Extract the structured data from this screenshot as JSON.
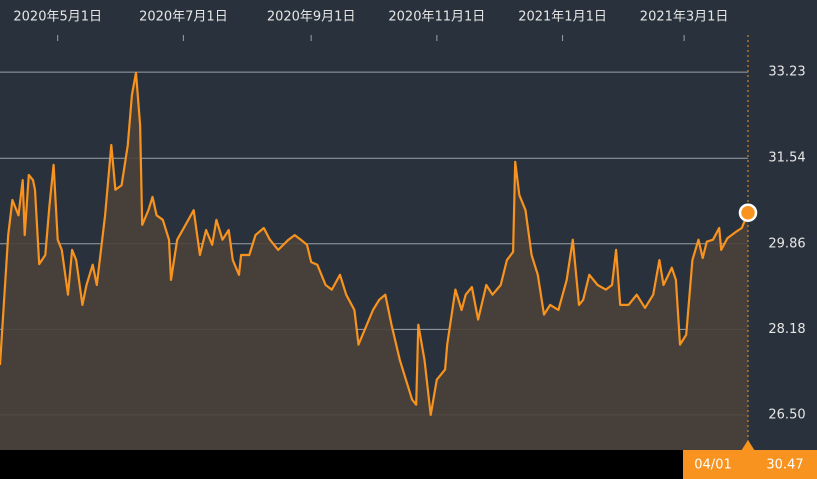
{
  "chart_data": {
    "type": "line",
    "x": [
      "2020-04-03",
      "2020-04-07",
      "2020-04-09",
      "2020-04-12",
      "2020-04-14",
      "2020-04-15",
      "2020-04-17",
      "2020-04-19",
      "2020-04-20",
      "2020-04-22",
      "2020-04-25",
      "2020-04-27",
      "2020-04-29",
      "2020-05-01",
      "2020-05-03",
      "2020-05-06",
      "2020-05-08",
      "2020-05-10",
      "2020-05-13",
      "2020-05-15",
      "2020-05-18",
      "2020-05-20",
      "2020-05-22",
      "2020-05-24",
      "2020-05-27",
      "2020-05-29",
      "2020-06-01",
      "2020-06-04",
      "2020-06-06",
      "2020-06-08",
      "2020-06-10",
      "2020-06-11",
      "2020-06-14",
      "2020-06-16",
      "2020-06-18",
      "2020-06-21",
      "2020-06-24",
      "2020-06-25",
      "2020-06-28",
      "2020-07-02",
      "2020-07-06",
      "2020-07-09",
      "2020-07-12",
      "2020-07-15",
      "2020-07-17",
      "2020-07-20",
      "2020-07-23",
      "2020-07-25",
      "2020-07-28",
      "2020-07-29",
      "2020-08-02",
      "2020-08-05",
      "2020-08-09",
      "2020-08-12",
      "2020-08-16",
      "2020-08-21",
      "2020-08-24",
      "2020-08-27",
      "2020-08-30",
      "2020-09-01",
      "2020-09-04",
      "2020-09-08",
      "2020-09-11",
      "2020-09-15",
      "2020-09-18",
      "2020-09-22",
      "2020-09-24",
      "2020-09-27",
      "2020-10-01",
      "2020-10-04",
      "2020-10-07",
      "2020-10-10",
      "2020-10-14",
      "2020-10-17",
      "2020-10-20",
      "2020-10-22",
      "2020-10-23",
      "2020-10-26",
      "2020-10-29",
      "2020-11-01",
      "2020-11-05",
      "2020-11-06",
      "2020-11-10",
      "2020-11-13",
      "2020-11-15",
      "2020-11-18",
      "2020-11-21",
      "2020-11-25",
      "2020-11-28",
      "2020-12-02",
      "2020-12-05",
      "2020-12-08",
      "2020-12-09",
      "2020-12-11",
      "2020-12-14",
      "2020-12-17",
      "2020-12-20",
      "2020-12-23",
      "2020-12-26",
      "2020-12-30",
      "2021-01-03",
      "2021-01-06",
      "2021-01-09",
      "2021-01-11",
      "2021-01-14",
      "2021-01-18",
      "2021-01-22",
      "2021-01-25",
      "2021-01-27",
      "2021-01-29",
      "2021-02-02",
      "2021-02-06",
      "2021-02-10",
      "2021-02-14",
      "2021-02-17",
      "2021-02-19",
      "2021-02-23",
      "2021-02-25",
      "2021-02-27",
      "2021-03-02",
      "2021-03-05",
      "2021-03-08",
      "2021-03-10",
      "2021-03-12",
      "2021-03-15",
      "2021-03-18",
      "2021-03-19",
      "2021-03-22",
      "2021-03-26",
      "2021-03-29",
      "2021-04-01"
    ],
    "series": [
      {
        "color": "#f7931e",
        "values": [
          27.48,
          30.03,
          30.72,
          30.42,
          31.11,
          30.03,
          31.21,
          31.11,
          30.92,
          29.46,
          29.64,
          30.62,
          31.41,
          29.94,
          29.74,
          28.86,
          29.74,
          29.54,
          28.66,
          29.05,
          29.45,
          29.05,
          29.74,
          30.42,
          31.8,
          30.92,
          31.01,
          31.8,
          32.78,
          33.22,
          32.19,
          30.23,
          30.52,
          30.78,
          30.42,
          30.33,
          29.94,
          29.15,
          29.94,
          30.23,
          30.52,
          29.64,
          30.13,
          29.84,
          30.33,
          29.94,
          30.13,
          29.54,
          29.25,
          29.64,
          29.64,
          30.03,
          30.17,
          29.94,
          29.74,
          29.94,
          30.03,
          29.94,
          29.84,
          29.5,
          29.45,
          29.05,
          28.96,
          29.25,
          28.86,
          28.56,
          27.88,
          28.17,
          28.56,
          28.76,
          28.86,
          28.27,
          27.58,
          27.19,
          26.8,
          26.7,
          28.27,
          27.58,
          26.5,
          27.19,
          27.39,
          27.88,
          28.96,
          28.56,
          28.86,
          29.01,
          28.37,
          29.05,
          28.86,
          29.05,
          29.54,
          29.7,
          31.47,
          30.82,
          30.52,
          29.64,
          29.25,
          28.47,
          28.66,
          28.56,
          29.15,
          29.94,
          28.66,
          28.76,
          29.25,
          29.05,
          28.96,
          29.05,
          29.74,
          28.66,
          28.66,
          28.86,
          28.6,
          28.86,
          29.54,
          29.05,
          29.39,
          29.15,
          27.88,
          28.07,
          29.54,
          29.94,
          29.58,
          29.9,
          29.94,
          30.17,
          29.74,
          29.97,
          30.09,
          30.17,
          30.47
        ]
      }
    ],
    "xlim": [
      "2020-04-03",
      "2021-04-01"
    ],
    "xticks": [
      {
        "value": "2020-05-01",
        "label": "2020年5月1日"
      },
      {
        "value": "2020-07-01",
        "label": "2020年7月1日"
      },
      {
        "value": "2020-09-01",
        "label": "2020年9月1日"
      },
      {
        "value": "2020-11-01",
        "label": "2020年11月1日"
      },
      {
        "value": "2021-01-01",
        "label": "2021年1月1日"
      },
      {
        "value": "2021-03-01",
        "label": "2021年3月1日"
      }
    ],
    "ylim": [
      25.81,
      33.96
    ],
    "yticks": [
      33.23,
      31.54,
      29.86,
      28.18,
      {
        "value": 26.5,
        "label": "26.50"
      }
    ],
    "grid": true,
    "background": "#29323c",
    "area_color": "#4a4038",
    "last_point_label": {
      "date": "04/01",
      "value": 30.47
    }
  }
}
